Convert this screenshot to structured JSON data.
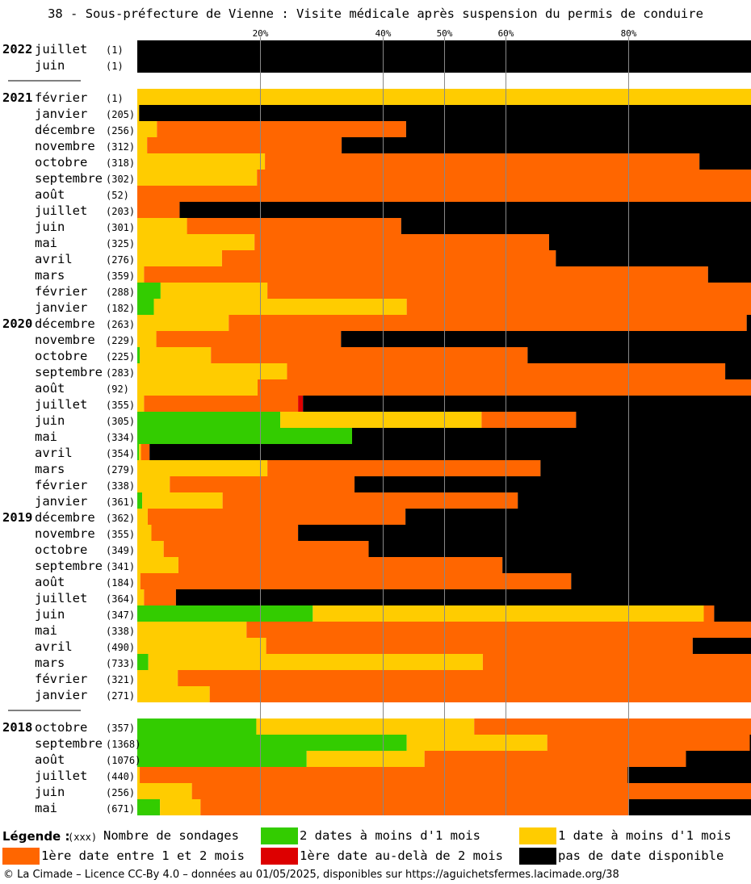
{
  "title": "38 - Sous-préfecture de Vienne : Visite médicale après suspension du permis de conduire",
  "colors": {
    "green": "#33cc00",
    "yellow": "#ffcc00",
    "orange": "#ff6600",
    "red": "#dd0000",
    "black": "#000000",
    "grid": "#888888"
  },
  "legend": {
    "title": "Légende :",
    "count_marker": "(xxx)",
    "count_label": "Nombre de sondages",
    "green": "2 dates à moins d'1 mois",
    "yellow": "1 date à moins d'1 mois",
    "orange": "1ère date entre 1 et 2 mois",
    "red": "1ère date au-delà de 2 mois",
    "black": "pas de date disponible"
  },
  "footer": "© La Cimade – Licence CC-By 4.0 – données au 01/05/2025, disponibles sur https://aguichetsfermes.lacimade.org/38",
  "chart_data": {
    "type": "bar",
    "orientation": "horizontal-stacked-100",
    "x_ticks": [
      "20%",
      "40%",
      "50%",
      "60%",
      "80%"
    ],
    "xlim": [
      0,
      100
    ],
    "series_order": [
      "green",
      "yellow",
      "orange",
      "red",
      "black"
    ],
    "groups": [
      {
        "year": "2022",
        "rows": [
          {
            "month": "juillet",
            "count": "(1)",
            "values": [
              0,
              0,
              0,
              0,
              100
            ]
          },
          {
            "month": "juin",
            "count": "(1)",
            "values": [
              0,
              0,
              0,
              0,
              100
            ]
          }
        ]
      },
      {
        "year": "2021",
        "rows": [
          {
            "month": "février",
            "count": "(1)",
            "values": [
              0,
              100,
              0,
              0,
              0
            ]
          },
          {
            "month": "janvier",
            "count": "(205)",
            "values": [
              0,
              0.3,
              0,
              0,
              99.7
            ]
          },
          {
            "month": "décembre",
            "count": "(256)",
            "values": [
              0,
              3.2,
              40.6,
              0,
              56.2
            ]
          },
          {
            "month": "novembre",
            "count": "(312)",
            "values": [
              0,
              1.6,
              31.7,
              0,
              66.7
            ]
          },
          {
            "month": "octobre",
            "count": "(318)",
            "values": [
              0,
              20.8,
              70.8,
              0,
              8.4
            ]
          },
          {
            "month": "septembre",
            "count": "(302)",
            "values": [
              0,
              19.5,
              80.5,
              0,
              0
            ]
          },
          {
            "month": "août",
            "count": "(52)",
            "values": [
              0,
              0,
              100,
              0,
              0
            ]
          },
          {
            "month": "juillet",
            "count": "(203)",
            "values": [
              0,
              0,
              6.9,
              0,
              93.1
            ]
          },
          {
            "month": "juin",
            "count": "(301)",
            "values": [
              0,
              8.1,
              34.9,
              0,
              57
            ]
          },
          {
            "month": "mai",
            "count": "(325)",
            "values": [
              0,
              19.1,
              48,
              0,
              32.9
            ]
          },
          {
            "month": "avril",
            "count": "(276)",
            "values": [
              0,
              13.8,
              54.4,
              0,
              31.8
            ]
          },
          {
            "month": "mars",
            "count": "(359)",
            "values": [
              0,
              1.1,
              91.9,
              0,
              7
            ]
          },
          {
            "month": "février",
            "count": "(288)",
            "values": [
              3.8,
              17.4,
              78.8,
              0,
              0
            ]
          },
          {
            "month": "janvier",
            "count": "(182)",
            "values": [
              2.7,
              41.2,
              56.1,
              0,
              0
            ]
          }
        ]
      },
      {
        "year": "2020",
        "rows": [
          {
            "month": "décembre",
            "count": "(263)",
            "values": [
              0,
              14.9,
              84.4,
              0,
              0.7
            ]
          },
          {
            "month": "novembre",
            "count": "(229)",
            "values": [
              0,
              3.1,
              30.1,
              0,
              66.8
            ]
          },
          {
            "month": "octobre",
            "count": "(225)",
            "values": [
              0.4,
              11.6,
              51.6,
              0,
              36.4
            ]
          },
          {
            "month": "septembre",
            "count": "(283)",
            "values": [
              0,
              24.4,
              71.4,
              0,
              4.2
            ]
          },
          {
            "month": "août",
            "count": "(92)",
            "values": [
              0,
              19.6,
              80.4,
              0,
              0
            ]
          },
          {
            "month": "juillet",
            "count": "(355)",
            "values": [
              0,
              1.1,
              25.1,
              0.8,
              73
            ]
          },
          {
            "month": "juin",
            "count": "(305)",
            "values": [
              23.3,
              32.8,
              15.4,
              0,
              28.5
            ]
          },
          {
            "month": "mai",
            "count": "(334)",
            "values": [
              35,
              0,
              0,
              0,
              65
            ]
          },
          {
            "month": "avril",
            "count": "(354)",
            "values": [
              0.3,
              0.3,
              1.4,
              0,
              98
            ]
          },
          {
            "month": "mars",
            "count": "(279)",
            "values": [
              0,
              21.2,
              44.5,
              0,
              34.3
            ]
          },
          {
            "month": "février",
            "count": "(338)",
            "values": [
              0,
              5.3,
              30.1,
              0,
              64.6
            ]
          },
          {
            "month": "janvier",
            "count": "(361)",
            "values": [
              0.8,
              13.1,
              48.1,
              0,
              38
            ]
          }
        ]
      },
      {
        "year": "2019",
        "rows": [
          {
            "month": "décembre",
            "count": "(362)",
            "values": [
              0,
              1.7,
              42,
              0,
              56.3
            ]
          },
          {
            "month": "novembre",
            "count": "(355)",
            "values": [
              0,
              2.3,
              23.9,
              0,
              73.8
            ]
          },
          {
            "month": "octobre",
            "count": "(349)",
            "values": [
              0,
              4.3,
              33.4,
              0,
              62.3
            ]
          },
          {
            "month": "septembre",
            "count": "(341)",
            "values": [
              0,
              6.7,
              52.8,
              0,
              40.5
            ]
          },
          {
            "month": "août",
            "count": "(184)",
            "values": [
              0,
              0.5,
              70.2,
              0,
              29.3
            ]
          },
          {
            "month": "juillet",
            "count": "(364)",
            "values": [
              0,
              1.1,
              5.2,
              0,
              93.7
            ]
          },
          {
            "month": "juin",
            "count": "(347)",
            "values": [
              28.6,
              63.7,
              1.7,
              0,
              6
            ]
          },
          {
            "month": "mai",
            "count": "(338)",
            "values": [
              0,
              17.8,
              82.2,
              0,
              0
            ]
          },
          {
            "month": "avril",
            "count": "(490)",
            "values": [
              0,
              21,
              69.5,
              0,
              9.5
            ]
          },
          {
            "month": "mars",
            "count": "(733)",
            "values": [
              1.8,
              54.5,
              43.7,
              0,
              0
            ]
          },
          {
            "month": "février",
            "count": "(321)",
            "values": [
              0,
              6.6,
              93.4,
              0,
              0
            ]
          },
          {
            "month": "janvier",
            "count": "(271)",
            "values": [
              0,
              11.8,
              88.2,
              0,
              0
            ]
          }
        ]
      },
      {
        "year": "2018",
        "rows": [
          {
            "month": "octobre",
            "count": "(357)",
            "values": [
              19.4,
              35.5,
              45.1,
              0,
              0
            ]
          },
          {
            "month": "septembre",
            "count": "(1368)",
            "values": [
              43.9,
              22.9,
              33,
              0,
              0.2
            ]
          },
          {
            "month": "août",
            "count": "(1076)",
            "values": [
              27.6,
              19.2,
              42.6,
              0,
              10.6
            ]
          },
          {
            "month": "juillet",
            "count": "(440)",
            "values": [
              0,
              0.4,
              79.5,
              0,
              20.1
            ]
          },
          {
            "month": "juin",
            "count": "(256)",
            "values": [
              0,
              8.9,
              91.1,
              0,
              0
            ]
          },
          {
            "month": "mai",
            "count": "(671)",
            "values": [
              3.7,
              6.6,
              69.7,
              0,
              20
            ]
          }
        ]
      }
    ]
  }
}
